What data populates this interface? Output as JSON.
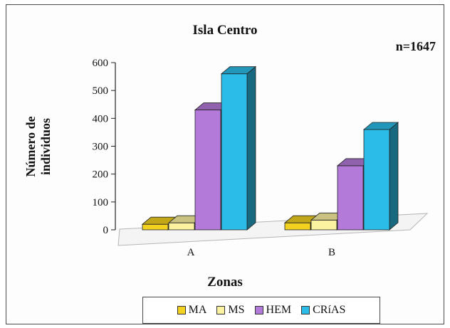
{
  "chart_data": {
    "type": "bar",
    "title": "Isla Centro",
    "annotation": "n=1647",
    "xlabel": "Zonas",
    "ylabel": "Número de\nindividuos",
    "ylim": [
      0,
      600
    ],
    "yticks": [
      0,
      100,
      200,
      300,
      400,
      500,
      600
    ],
    "categories": [
      "A",
      "B"
    ],
    "series": [
      {
        "name": "MA",
        "values": [
          20,
          25
        ],
        "color": "#f2d21f"
      },
      {
        "name": "MS",
        "values": [
          25,
          35
        ],
        "color": "#fbf3a0"
      },
      {
        "name": "HEM",
        "values": [
          430,
          230
        ],
        "color": "#b47ad9"
      },
      {
        "name": "CRíAS",
        "values": [
          560,
          360
        ],
        "color": "#2bbde8"
      }
    ],
    "legend_position": "bottom",
    "style": "3d"
  }
}
